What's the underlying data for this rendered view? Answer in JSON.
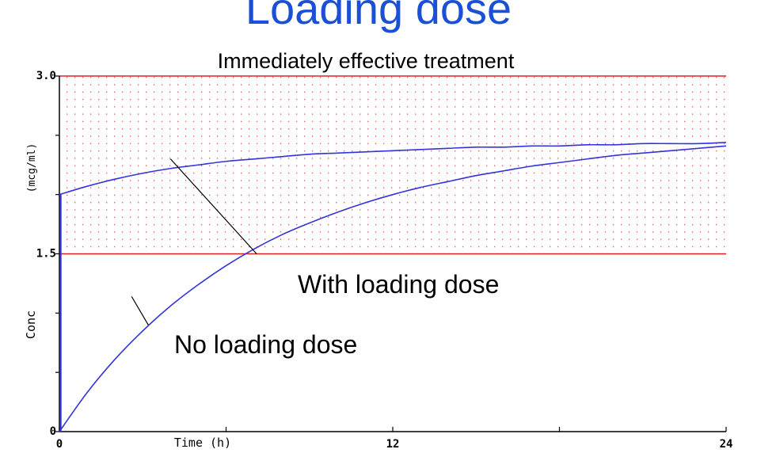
{
  "slide": {
    "title": "Loading dose"
  },
  "chart_data": {
    "type": "line",
    "title": "Immediately effective treatment",
    "xlabel": "Time (h)",
    "ylabel": "Conc",
    "ylabel_unit": "(mcg/ml)",
    "xlim": [
      0,
      24
    ],
    "ylim": [
      0,
      3.0
    ],
    "x_ticks": [
      0,
      6,
      12,
      18,
      24
    ],
    "x_tick_labels": [
      "0",
      "",
      "12",
      "",
      "24"
    ],
    "y_ticks": [
      0,
      0.5,
      1.0,
      1.5,
      2.0,
      2.5,
      3.0
    ],
    "y_tick_labels": [
      "0",
      "",
      "",
      "1.5",
      "",
      "",
      "3.0"
    ],
    "therapeutic_range": [
      1.5,
      3.0
    ],
    "colors": {
      "curve": "#3333dd",
      "range_line": "#e02020",
      "range_dots": "#e85050",
      "title_blue": "#1a4fd6",
      "axis": "#000000"
    },
    "series": [
      {
        "key": "no_loading",
        "x": [
          0,
          1,
          2,
          3,
          4,
          5,
          6,
          7,
          8,
          9,
          10,
          11,
          12,
          13,
          14,
          15,
          16,
          17,
          18,
          19,
          20,
          21,
          22,
          23,
          24
        ],
        "values": [
          0,
          0.33,
          0.61,
          0.85,
          1.06,
          1.24,
          1.4,
          1.54,
          1.66,
          1.76,
          1.85,
          1.93,
          2.0,
          2.06,
          2.11,
          2.16,
          2.2,
          2.24,
          2.27,
          2.3,
          2.33,
          2.35,
          2.37,
          2.39,
          2.41
        ]
      },
      {
        "key": "with_loading",
        "x": [
          0,
          1,
          2,
          3,
          4,
          5,
          6,
          7,
          8,
          9,
          10,
          11,
          12,
          13,
          14,
          15,
          16,
          17,
          18,
          19,
          20,
          21,
          22,
          23,
          24
        ],
        "values": [
          2.0,
          2.07,
          2.13,
          2.18,
          2.22,
          2.25,
          2.28,
          2.3,
          2.32,
          2.34,
          2.35,
          2.36,
          2.37,
          2.38,
          2.39,
          2.4,
          2.4,
          2.41,
          2.41,
          2.42,
          2.42,
          2.43,
          2.43,
          2.43,
          2.44
        ]
      }
    ],
    "annotations": [
      {
        "key": "with_loading",
        "text": "With loading dose",
        "point_x": 4,
        "point_y": 2.3,
        "label_x": 7.1,
        "label_y": 1.5
      },
      {
        "key": "no_loading",
        "text": "No loading dose",
        "point_x": 2.6,
        "point_y": 1.14,
        "label_x": 3.2,
        "label_y": 0.9
      }
    ]
  }
}
